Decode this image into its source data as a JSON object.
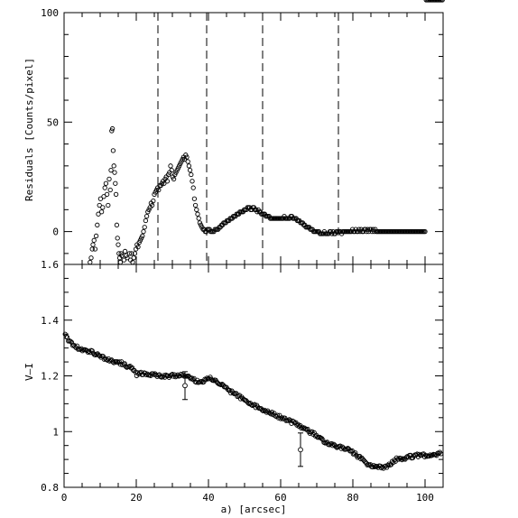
{
  "chart_data": [
    {
      "type": "scatter",
      "panel": "top",
      "xlabel": "",
      "ylabel": "Residuals [Counts/pixel]",
      "xlim": [
        0,
        105
      ],
      "ylim": [
        -15,
        100
      ],
      "yticks": [
        {
          "value": 100,
          "label": "100"
        },
        {
          "value": 50,
          "label": "50"
        },
        {
          "value": 0,
          "label": "0"
        }
      ],
      "xticks": [
        0,
        20,
        40,
        60,
        80,
        100
      ],
      "show_xtick_labels": false,
      "vlines": [
        26,
        39.5,
        55,
        76
      ],
      "points_x": [
        7.2,
        7.5,
        7.8,
        8,
        8.3,
        8.6,
        8.9,
        9.2,
        9.5,
        9.8,
        10.1,
        10.4,
        10.7,
        11,
        11.3,
        11.6,
        11.9,
        12.2,
        12.5,
        12.8,
        13,
        13.2,
        13.4,
        13.6,
        13.8,
        14,
        14.2,
        14.4,
        14.6,
        14.8,
        15,
        15.2,
        15.4,
        15.6,
        15.8,
        16,
        16.3,
        16.6,
        16.9,
        17.2,
        17.5,
        17.8,
        18.1,
        18.4,
        18.7,
        19,
        19.3,
        19.6,
        19.9,
        20.2,
        20.5,
        20.8,
        21.1,
        21.4,
        21.7,
        22,
        22.3,
        22.6,
        22.9,
        23.2,
        23.5,
        23.8,
        24.1,
        24.4,
        24.7,
        25,
        25.3,
        25.6,
        25.9,
        26.2,
        26.5,
        26.8,
        27.1,
        27.4,
        27.7,
        28,
        28.3,
        28.6,
        28.9,
        29.2,
        29.5,
        29.8,
        30.1,
        30.4,
        30.7,
        31,
        31.3,
        31.6,
        31.9,
        32.2,
        32.5,
        32.8,
        33.1,
        33.4,
        33.7,
        34,
        34.3,
        34.6,
        34.9,
        35.2,
        35.5,
        35.8,
        36.1,
        36.4,
        36.7,
        37,
        37.3,
        37.6,
        37.9,
        38.2,
        38.5,
        38.8,
        39.1,
        39.4,
        39.7,
        40,
        40.3,
        40.6,
        40.9,
        41.2,
        41.5,
        41.8,
        42.1,
        42.4,
        42.7,
        43,
        43.3,
        43.6,
        43.9,
        44.2,
        44.5,
        44.8,
        45.1,
        45.4,
        45.7,
        46,
        46.3,
        46.6,
        46.9,
        47.2,
        47.5,
        47.8,
        48.1,
        48.4,
        48.7,
        49,
        49.3,
        49.6,
        49.9,
        50.2,
        50.5,
        50.8,
        51.1,
        51.4,
        51.7,
        52,
        52.3,
        52.6,
        52.9,
        53.2,
        53.5,
        53.8,
        54.1,
        54.4,
        54.7,
        55,
        55.3,
        55.6,
        55.9,
        56.2,
        56.5,
        56.8,
        57.1,
        57.4,
        57.7,
        58,
        58.3,
        58.6,
        58.9,
        59.2,
        59.5,
        59.8,
        60.1,
        60.4,
        60.7,
        61,
        61.3,
        61.6,
        61.9,
        62.2,
        62.5,
        62.8,
        63.1,
        63.4,
        63.7,
        64,
        64.3,
        64.6,
        64.9,
        65.2,
        65.5,
        65.8,
        66.1,
        66.4,
        66.7,
        67,
        67.3,
        67.6,
        67.9,
        68.2,
        68.5,
        68.8,
        69.1,
        69.4,
        69.7,
        70,
        70.3,
        70.6,
        70.9,
        71.2,
        71.5,
        71.8,
        72.1,
        72.4,
        72.7,
        73,
        73.3,
        73.6,
        73.9,
        74.2,
        74.5,
        74.8,
        75.1,
        75.4,
        75.7,
        76,
        76.3,
        76.6,
        76.9,
        77.2,
        77.5,
        77.8,
        78.1,
        78.4,
        78.7,
        79,
        79.3,
        79.6,
        79.9,
        80.2,
        80.5,
        80.8,
        81.1,
        81.4,
        81.7,
        82,
        82.3,
        82.6,
        82.9,
        83.2,
        83.5,
        83.8,
        84.1,
        84.4,
        84.7,
        85,
        85.3,
        85.6,
        85.9,
        86.2,
        86.5,
        86.8,
        87.1,
        87.4,
        87.7,
        88,
        88.3,
        88.6,
        88.9,
        89.2,
        89.5,
        89.8,
        90.1,
        90.4,
        90.7,
        91,
        91.3,
        91.6,
        91.9,
        92.2,
        92.5,
        92.8,
        93.1,
        93.4,
        93.7,
        94,
        94.3,
        94.6,
        94.9,
        95.2,
        95.5,
        95.8,
        96.1,
        96.4,
        96.7,
        97,
        97.3,
        97.6,
        97.9,
        98.2,
        98.5,
        98.8,
        99.1,
        99.4,
        99.7,
        100,
        100.3,
        100.6,
        100.9,
        101.2,
        101.5,
        101.8,
        102.1,
        102.4,
        102.7,
        103,
        103.3,
        103.6,
        103.9,
        104.2,
        104.5,
        104.8
      ],
      "points_y": [
        -14,
        -12,
        -8,
        -6,
        -4,
        -8,
        -2,
        3,
        8,
        12,
        15,
        9,
        11,
        16,
        20,
        22,
        17,
        12,
        24,
        19,
        28,
        46,
        47,
        37,
        30,
        27,
        22,
        17,
        3,
        -3,
        -6,
        -10,
        -12,
        -14,
        -10,
        -11,
        -15,
        -13,
        -9,
        -11,
        -12,
        -15,
        -10,
        -13,
        -10,
        -14,
        -12,
        -10,
        -8,
        -6,
        -7,
        -5,
        -4,
        -3,
        -2,
        0,
        2,
        5,
        7,
        9,
        10,
        11,
        13,
        12,
        14,
        17,
        18,
        19,
        20,
        19,
        21,
        21,
        22,
        23,
        22,
        24,
        25,
        23,
        26,
        27,
        30,
        28,
        25,
        24,
        26,
        27,
        28,
        29,
        30,
        31,
        32,
        33,
        34,
        33,
        35,
        34,
        32,
        30,
        28,
        26,
        23,
        20,
        15,
        12,
        10,
        8,
        6,
        4,
        3,
        2,
        1,
        1,
        0,
        0,
        1,
        1,
        1,
        0,
        0,
        0,
        0,
        1,
        1,
        1,
        1,
        2,
        2,
        3,
        3,
        4,
        4,
        4,
        5,
        5,
        5,
        6,
        6,
        6,
        7,
        7,
        7,
        8,
        8,
        8,
        9,
        9,
        9,
        9,
        10,
        10,
        10,
        11,
        11,
        11,
        10,
        10,
        11,
        11,
        10,
        10,
        9,
        10,
        9,
        9,
        8,
        8,
        8,
        8,
        7,
        7,
        7,
        7,
        6,
        6,
        6,
        6,
        6,
        6,
        6,
        6,
        6,
        6,
        6,
        6,
        6,
        7,
        6,
        6,
        6,
        6,
        6,
        7,
        7,
        6,
        6,
        6,
        6,
        5,
        5,
        5,
        4,
        4,
        4,
        3,
        3,
        2,
        2,
        2,
        2,
        1,
        1,
        1,
        0,
        0,
        0,
        0,
        0,
        0,
        -1,
        -1,
        -1,
        -1,
        0,
        -1,
        -1,
        -1,
        -1,
        0,
        0,
        -1,
        0,
        -1,
        -1,
        0,
        0,
        0,
        0,
        0,
        -1,
        0,
        0,
        0,
        0,
        0,
        0,
        0,
        0,
        0,
        1,
        0,
        0,
        1,
        0,
        0,
        1,
        0,
        1,
        0,
        0,
        1,
        1,
        0,
        1,
        0,
        1,
        1,
        0,
        1,
        0,
        1,
        0,
        0,
        0,
        0,
        0,
        0,
        0,
        0,
        0,
        0,
        0,
        0,
        0,
        0,
        0,
        0,
        0,
        0,
        0,
        0,
        0,
        0,
        0,
        0,
        0,
        0,
        0,
        0,
        0,
        0,
        0,
        0,
        0,
        0,
        0,
        0,
        0,
        0,
        0,
        0,
        0,
        0,
        0,
        0,
        0,
        0
      ]
    },
    {
      "type": "scatter",
      "panel": "bottom",
      "xlabel": "a) [arcsec]",
      "ylabel": "V–I",
      "xlim": [
        0,
        105
      ],
      "ylim": [
        0.8,
        1.6
      ],
      "yticks": [
        {
          "value": 1.6,
          "label": "1.6"
        },
        {
          "value": 1.4,
          "label": "1.4"
        },
        {
          "value": 1.2,
          "label": "1.2"
        },
        {
          "value": 1.0,
          "label": "1"
        },
        {
          "value": 0.8,
          "label": "0.8"
        }
      ],
      "xticks": [
        {
          "value": 0,
          "label": "0"
        },
        {
          "value": 20,
          "label": "20"
        },
        {
          "value": 40,
          "label": "40"
        },
        {
          "value": 60,
          "label": "60"
        },
        {
          "value": 80,
          "label": "80"
        },
        {
          "value": 100,
          "label": "100"
        }
      ],
      "knots_x": [
        0,
        1,
        3,
        5,
        8,
        10,
        13,
        16,
        19,
        20,
        21,
        24,
        28,
        30,
        32,
        33,
        35,
        37,
        38,
        40,
        41,
        42,
        44,
        46,
        48,
        50,
        52,
        54,
        56,
        58,
        60,
        62,
        64,
        66,
        68,
        70,
        72,
        74,
        76,
        78,
        80,
        82,
        84,
        86,
        88,
        90,
        92,
        94,
        96,
        98,
        100,
        102,
        104
      ],
      "knots_y": [
        1.355,
        1.33,
        1.305,
        1.295,
        1.285,
        1.27,
        1.255,
        1.245,
        1.225,
        1.205,
        1.21,
        1.205,
        1.2,
        1.2,
        1.2,
        1.205,
        1.19,
        1.18,
        1.18,
        1.19,
        1.19,
        1.185,
        1.165,
        1.145,
        1.13,
        1.115,
        1.1,
        1.085,
        1.075,
        1.065,
        1.05,
        1.04,
        1.03,
        1.015,
        1.0,
        0.985,
        0.965,
        0.955,
        0.945,
        0.94,
        0.925,
        0.905,
        0.885,
        0.875,
        0.87,
        0.88,
        0.9,
        0.905,
        0.91,
        0.915,
        0.915,
        0.92,
        0.92
      ],
      "errorbars": [
        {
          "x": 33.5,
          "y": 1.165,
          "ylow": 1.115,
          "yhigh": 1.215
        },
        {
          "x": 65.5,
          "y": 0.935,
          "ylow": 0.875,
          "yhigh": 0.995
        }
      ]
    }
  ]
}
